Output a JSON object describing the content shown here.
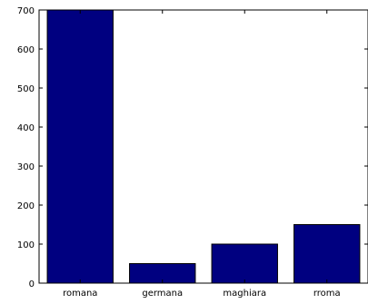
{
  "chart_data": {
    "type": "bar",
    "title": "",
    "xlabel": "",
    "ylabel": "",
    "categories": [
      "romana",
      "germana",
      "maghiara",
      "rroma"
    ],
    "values": [
      700,
      50,
      100,
      150
    ],
    "ylim": [
      0,
      700
    ],
    "yticks": [
      0,
      100,
      200,
      300,
      400,
      500,
      600,
      700
    ],
    "grid": false,
    "bar_color": "#000080",
    "bar_edge_color": "#000000",
    "axis_color": "#000000"
  }
}
